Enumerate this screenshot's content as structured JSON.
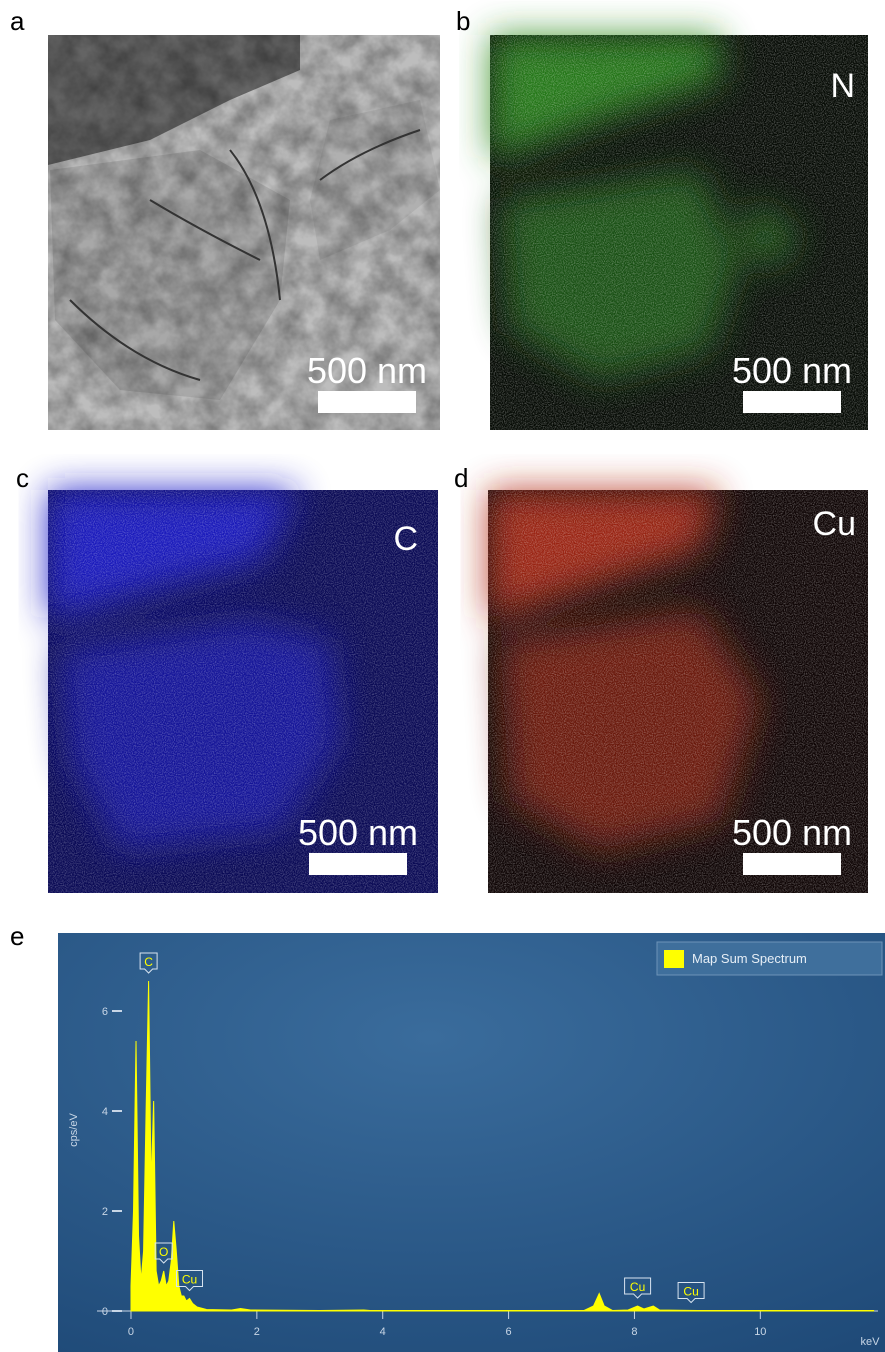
{
  "panels": [
    {
      "label": "a",
      "scale_bar": "500 nm"
    },
    {
      "label": "b",
      "element": "N",
      "scale_bar": "500 nm"
    },
    {
      "label": "c",
      "element": "C",
      "scale_bar": "500 nm"
    },
    {
      "label": "d",
      "element": "Cu",
      "scale_bar": "500 nm"
    },
    {
      "label": "e"
    }
  ],
  "chart_data": {
    "type": "area",
    "xlabel": "keV",
    "ylabel": "cps/eV",
    "x": [
      0,
      0.04,
      0.08,
      0.12,
      0.16,
      0.2,
      0.24,
      0.28,
      0.32,
      0.36,
      0.4,
      0.44,
      0.48,
      0.52,
      0.56,
      0.6,
      0.64,
      0.68,
      0.72,
      0.76,
      0.8,
      0.84,
      0.88,
      0.93,
      0.98,
      1.05,
      1.2,
      1.6,
      1.74,
      1.9,
      3,
      3.7,
      3.8,
      4,
      7.2,
      7.35,
      7.44,
      7.52,
      7.65,
      7.9,
      8.05,
      8.15,
      8.3,
      8.4,
      9,
      11.8
    ],
    "series": [
      {
        "name": "Map Sum Spectrum",
        "color": "#ffff00",
        "values": [
          0.5,
          2.0,
          5.4,
          1.5,
          0.6,
          1.2,
          4.0,
          6.6,
          2.5,
          4.2,
          0.8,
          0.5,
          0.6,
          0.8,
          0.5,
          0.6,
          1.0,
          1.8,
          1.2,
          0.5,
          0.3,
          0.3,
          0.2,
          0.25,
          0.15,
          0.08,
          0.03,
          0.02,
          0.05,
          0.02,
          0.01,
          0.02,
          0.01,
          0.01,
          0.01,
          0.1,
          0.35,
          0.1,
          0.01,
          0.02,
          0.1,
          0.04,
          0.1,
          0.02,
          0.01,
          0.01
        ]
      }
    ],
    "peak_labels": [
      {
        "label": "C",
        "x": 0.28
      },
      {
        "label": "O",
        "x": 0.52
      },
      {
        "label": "Cu",
        "x": 0.93
      },
      {
        "label": "Cu",
        "x": 8.05
      },
      {
        "label": "Cu",
        "x": 8.9
      }
    ],
    "xlim": [
      -0.54,
      11.87
    ],
    "xticks": [
      0,
      2,
      4,
      6,
      8,
      10
    ],
    "ylim": [
      -0.2,
      7.5
    ],
    "yticks": [
      0,
      2,
      4,
      6
    ],
    "legend": "top-right"
  }
}
